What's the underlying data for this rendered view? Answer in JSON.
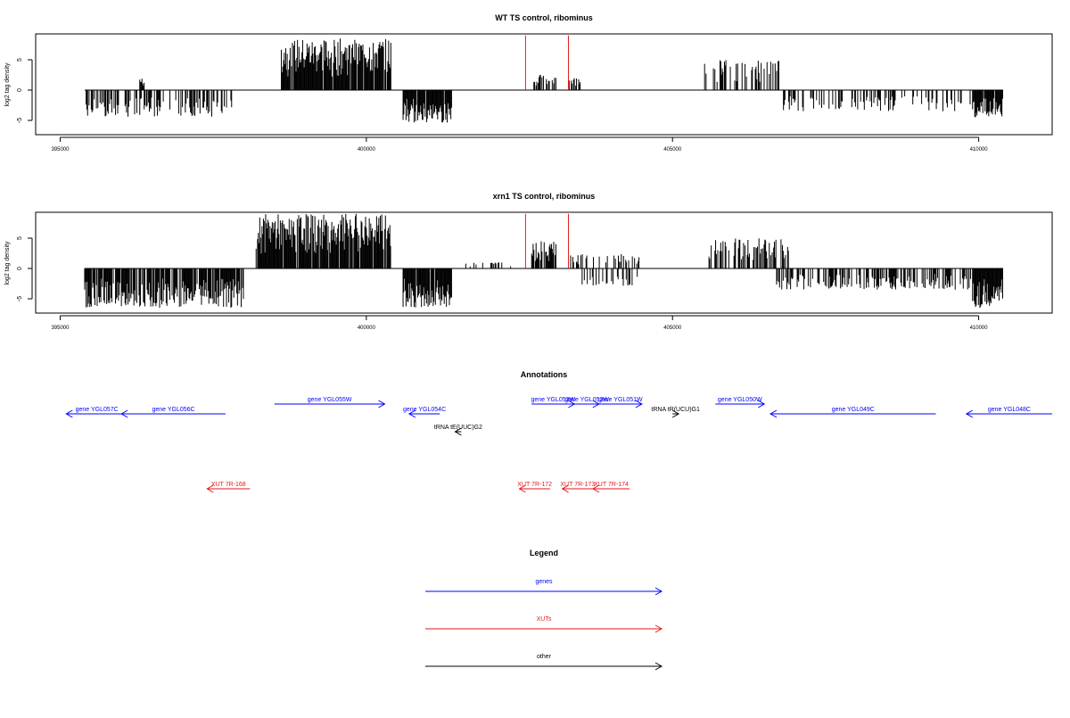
{
  "chart_data": [
    {
      "type": "bar",
      "title": "WT TS control, ribominus",
      "xlabel": "",
      "ylabel": "log2 tag density",
      "xlim": [
        394600,
        411200
      ],
      "ylim": [
        -8,
        9
      ],
      "x_ticks": [
        395000,
        400000,
        405000,
        410000
      ],
      "x_tick_labels": [
        "395000",
        "400000",
        "405000",
        "410000"
      ],
      "y_ticks": [
        5,
        0,
        -5
      ],
      "y_tick_labels": [
        "5",
        "0",
        "-5"
      ],
      "regions": [
        {
          "start": 395400,
          "end": 397800,
          "sign": -1,
          "max": 4.5,
          "density": 0.45
        },
        {
          "start": 396300,
          "end": 396380,
          "sign": 1,
          "max": 2.0,
          "density": 1.0
        },
        {
          "start": 398600,
          "end": 400400,
          "sign": 1,
          "max": 8.5,
          "density": 0.95
        },
        {
          "start": 400600,
          "end": 401400,
          "sign": -1,
          "max": 5.5,
          "density": 0.95
        },
        {
          "start": 402700,
          "end": 403100,
          "sign": 1,
          "max": 2.5,
          "density": 0.5
        },
        {
          "start": 403300,
          "end": 403500,
          "sign": 1,
          "max": 2.0,
          "density": 0.5
        },
        {
          "start": 405500,
          "end": 406800,
          "sign": 1,
          "max": 5.0,
          "density": 0.3
        },
        {
          "start": 406800,
          "end": 409900,
          "sign": -1,
          "max": 3.5,
          "density": 0.3
        },
        {
          "start": 409900,
          "end": 410400,
          "sign": -1,
          "max": 4.5,
          "density": 0.95
        }
      ],
      "markers": [
        {
          "x": 402600,
          "y": 9,
          "color": "#e31a1c"
        },
        {
          "x": 403300,
          "y": 9,
          "color": "#e31a1c"
        }
      ],
      "grid": false
    },
    {
      "type": "bar",
      "title": "xrn1 TS control, ribominus",
      "xlabel": "",
      "ylabel": "log2 tag density",
      "xlim": [
        394600,
        411200
      ],
      "ylim": [
        -8,
        9
      ],
      "x_ticks": [
        395000,
        400000,
        405000,
        410000
      ],
      "x_tick_labels": [
        "395000",
        "400000",
        "405000",
        "410000"
      ],
      "y_ticks": [
        5,
        0,
        -5
      ],
      "y_tick_labels": [
        "5",
        "0",
        "-5"
      ],
      "regions": [
        {
          "start": 395400,
          "end": 398000,
          "sign": -1,
          "max": 6.5,
          "density": 0.8
        },
        {
          "start": 398200,
          "end": 400400,
          "sign": 1,
          "max": 9.0,
          "density": 0.95
        },
        {
          "start": 400600,
          "end": 401400,
          "sign": -1,
          "max": 6.5,
          "density": 0.95
        },
        {
          "start": 401600,
          "end": 402400,
          "sign": 1,
          "max": 1.0,
          "density": 0.2
        },
        {
          "start": 402700,
          "end": 403100,
          "sign": 1,
          "max": 4.5,
          "density": 0.8
        },
        {
          "start": 403300,
          "end": 404500,
          "sign": 1,
          "max": 2.5,
          "density": 0.3
        },
        {
          "start": 403500,
          "end": 404500,
          "sign": -1,
          "max": 3.0,
          "density": 0.3
        },
        {
          "start": 405500,
          "end": 406900,
          "sign": 1,
          "max": 5.0,
          "density": 0.5
        },
        {
          "start": 406700,
          "end": 409900,
          "sign": -1,
          "max": 3.5,
          "density": 0.5
        },
        {
          "start": 409900,
          "end": 410400,
          "sign": -1,
          "max": 6.5,
          "density": 0.95
        }
      ],
      "markers": [
        {
          "x": 402600,
          "y": 9,
          "color": "#e31a1c"
        },
        {
          "x": 403300,
          "y": 9,
          "color": "#e31a1c"
        }
      ],
      "grid": false
    },
    {
      "type": "annotation",
      "title": "Annotations",
      "xlim": [
        394600,
        411200
      ],
      "features": [
        {
          "label": "gene YGL057C",
          "start": 396100,
          "end": 395100,
          "strand": "-",
          "class": "genes",
          "row": 1
        },
        {
          "label": "gene YGL056C",
          "start": 397700,
          "end": 396000,
          "strand": "-",
          "class": "genes",
          "row": 1
        },
        {
          "label": "gene YGL055W",
          "start": 398500,
          "end": 400300,
          "strand": "+",
          "class": "genes",
          "row": 0
        },
        {
          "label": "gene YGL054C",
          "start": 401200,
          "end": 400700,
          "strand": "-",
          "class": "genes",
          "row": 1
        },
        {
          "label": "tRNA tE(UUC)G2",
          "start": 401550,
          "end": 401450,
          "strand": "-",
          "class": "other",
          "row": 2
        },
        {
          "label": "gene YGL053W",
          "start": 402700,
          "end": 403400,
          "strand": "+",
          "class": "genes",
          "row": 0
        },
        {
          "label": "gene YGL052W",
          "start": 403400,
          "end": 403800,
          "strand": "+",
          "class": "genes",
          "row": 0
        },
        {
          "label": "gene YGL051W",
          "start": 403800,
          "end": 404500,
          "strand": "+",
          "class": "genes",
          "row": 0
        },
        {
          "label": "tRNA tR(UCU)G1",
          "start": 405000,
          "end": 405100,
          "strand": "+",
          "class": "other",
          "row": 1
        },
        {
          "label": "gene YGL050W",
          "start": 405700,
          "end": 406500,
          "strand": "+",
          "class": "genes",
          "row": 0
        },
        {
          "label": "gene YGL049C",
          "start": 409300,
          "end": 406600,
          "strand": "-",
          "class": "genes",
          "row": 1
        },
        {
          "label": "gene YGL048C",
          "start": 411200,
          "end": 409800,
          "strand": "-",
          "class": "genes",
          "row": 1
        },
        {
          "label": "XUT 7R-168",
          "start": 398100,
          "end": 397400,
          "strand": "-",
          "class": "XUTs",
          "row": 3
        },
        {
          "label": "XUT 7R-172",
          "start": 403000,
          "end": 402500,
          "strand": "-",
          "class": "XUTs",
          "row": 3
        },
        {
          "label": "XUT 7R-173",
          "start": 403700,
          "end": 403200,
          "strand": "-",
          "class": "XUTs",
          "row": 3
        },
        {
          "label": "XUT 7R-174",
          "start": 404300,
          "end": 403700,
          "strand": "-",
          "class": "XUTs",
          "row": 3
        }
      ]
    },
    {
      "type": "legend",
      "title": "Legend",
      "entries": [
        {
          "label": "genes",
          "color": "#0000ff"
        },
        {
          "label": "XUTs",
          "color": "#e31a1c"
        },
        {
          "label": "other",
          "color": "#000000"
        }
      ]
    }
  ],
  "colors": {
    "genes": "#0000ff",
    "XUTs": "#e31a1c",
    "other": "#000000",
    "bars": "#000000"
  }
}
